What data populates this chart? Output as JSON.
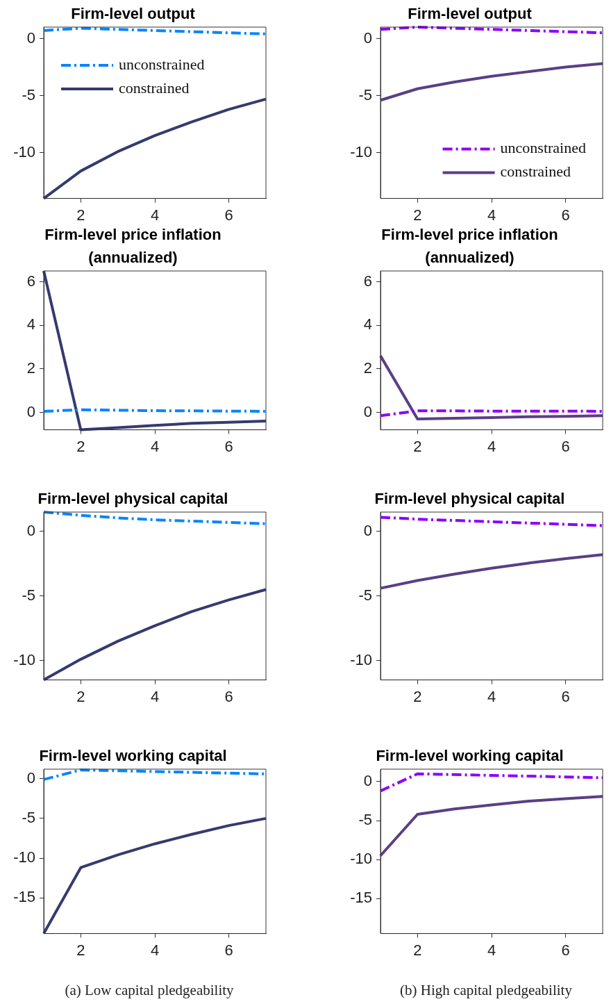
{
  "chart_data": [
    {
      "type": "line",
      "title": "Firm-level output",
      "x": [
        1,
        2,
        3,
        4,
        5,
        6,
        7
      ],
      "xlim": [
        1,
        7
      ],
      "xticks": [
        2,
        4,
        6
      ],
      "ylim": [
        -14,
        1
      ],
      "yticks": [
        -10,
        -5,
        0
      ],
      "legend": "top left",
      "series": [
        {
          "name": "unconstrained",
          "color": "#0a84ff",
          "line_style": "dashed",
          "values": [
            0.7,
            0.9,
            0.8,
            0.7,
            0.6,
            0.5,
            0.4
          ]
        },
        {
          "name": "constrained",
          "color": "#363a6e",
          "line_style": "solid",
          "values": [
            -14,
            -11.6,
            -9.9,
            -8.5,
            -7.3,
            -6.2,
            -5.3
          ]
        }
      ]
    },
    {
      "type": "line",
      "title": "Firm-level output",
      "x": [
        1,
        2,
        3,
        4,
        5,
        6,
        7
      ],
      "xlim": [
        1,
        7
      ],
      "xticks": [
        2,
        4,
        6
      ],
      "ylim": [
        -14,
        1
      ],
      "yticks": [
        -10,
        -5,
        0
      ],
      "legend": "bottom right",
      "series": [
        {
          "name": "unconstrained",
          "color": "#8b00ff",
          "line_style": "dashed",
          "values": [
            0.8,
            1,
            0.9,
            0.8,
            0.7,
            0.6,
            0.5
          ]
        },
        {
          "name": "constrained",
          "color": "#5a3f85",
          "line_style": "solid",
          "values": [
            -5.4,
            -4.4,
            -3.8,
            -3.3,
            -2.9,
            -2.5,
            -2.2
          ]
        }
      ]
    },
    {
      "type": "line",
      "title": "Firm-level price inflation (annualized)",
      "x": [
        1,
        2,
        3,
        4,
        5,
        6,
        7
      ],
      "xlim": [
        1,
        7
      ],
      "xticks": [
        2,
        4,
        6
      ],
      "ylim": [
        -0.8,
        6.5
      ],
      "yticks": [
        0,
        2,
        4,
        6
      ],
      "series": [
        {
          "color": "#0a84ff",
          "line_style": "dashed",
          "values": [
            0.05,
            0.12,
            0.1,
            0.08,
            0.07,
            0.06,
            0.05
          ]
        },
        {
          "color": "#363a6e",
          "line_style": "solid",
          "values": [
            6.5,
            -0.8,
            -0.7,
            -0.6,
            -0.5,
            -0.45,
            -0.4
          ]
        }
      ]
    },
    {
      "type": "line",
      "title": "Firm-level price inflation (annualized)",
      "x": [
        1,
        2,
        3,
        4,
        5,
        6,
        7
      ],
      "xlim": [
        1,
        7
      ],
      "xticks": [
        2,
        4,
        6
      ],
      "ylim": [
        -0.8,
        6.5
      ],
      "yticks": [
        0,
        2,
        4,
        6
      ],
      "series": [
        {
          "color": "#8b00ff",
          "line_style": "dashed",
          "values": [
            -0.15,
            0.07,
            0.07,
            0.06,
            0.06,
            0.06,
            0.05
          ]
        },
        {
          "color": "#5a3f85",
          "line_style": "solid",
          "values": [
            2.6,
            -0.3,
            -0.27,
            -0.24,
            -0.2,
            -0.18,
            -0.15
          ]
        }
      ]
    },
    {
      "type": "line",
      "title": "Firm-level physical capital",
      "x": [
        1,
        2,
        3,
        4,
        5,
        6,
        7
      ],
      "xlim": [
        1,
        7
      ],
      "xticks": [
        2,
        4,
        6
      ],
      "ylim": [
        -11.5,
        1.5
      ],
      "yticks": [
        -10,
        -5,
        0
      ],
      "series": [
        {
          "color": "#0a84ff",
          "line_style": "dashed",
          "values": [
            1.5,
            1.25,
            1.05,
            0.9,
            0.8,
            0.7,
            0.6
          ]
        },
        {
          "color": "#363a6e",
          "line_style": "solid",
          "values": [
            -11.5,
            -9.9,
            -8.5,
            -7.3,
            -6.2,
            -5.3,
            -4.5
          ]
        }
      ]
    },
    {
      "type": "line",
      "title": "Firm-level physical capital",
      "x": [
        1,
        2,
        3,
        4,
        5,
        6,
        7
      ],
      "xlim": [
        1,
        7
      ],
      "xticks": [
        2,
        4,
        6
      ],
      "ylim": [
        -11.5,
        1.5
      ],
      "yticks": [
        -10,
        -5,
        0
      ],
      "series": [
        {
          "color": "#8b00ff",
          "line_style": "dashed",
          "values": [
            1.1,
            0.95,
            0.85,
            0.75,
            0.65,
            0.55,
            0.45
          ]
        },
        {
          "color": "#5a3f85",
          "line_style": "solid",
          "values": [
            -4.4,
            -3.8,
            -3.3,
            -2.85,
            -2.45,
            -2.1,
            -1.8
          ]
        }
      ]
    },
    {
      "type": "line",
      "title": "Firm-level working capital",
      "x": [
        1,
        2,
        3,
        4,
        5,
        6,
        7
      ],
      "xlim": [
        1,
        7
      ],
      "xticks": [
        2,
        4,
        6
      ],
      "ylim": [
        -19.5,
        1.2
      ],
      "yticks": [
        -15,
        -10,
        -5,
        0
      ],
      "annotations": [
        "(a) Low capital pledgeability"
      ],
      "series": [
        {
          "color": "#0a84ff",
          "line_style": "dashed",
          "values": [
            -0.1,
            1.1,
            1,
            0.9,
            0.8,
            0.7,
            0.6
          ]
        },
        {
          "color": "#363a6e",
          "line_style": "solid",
          "values": [
            -19.5,
            -11.2,
            -9.6,
            -8.2,
            -7,
            -5.9,
            -5
          ]
        }
      ]
    },
    {
      "type": "line",
      "title": "Firm-level working capital",
      "x": [
        1,
        2,
        3,
        4,
        5,
        6,
        7
      ],
      "xlim": [
        1,
        7
      ],
      "xticks": [
        2,
        4,
        6
      ],
      "ylim": [
        -19.5,
        1.6
      ],
      "yticks": [
        -15,
        -10,
        -5,
        0
      ],
      "annotations": [
        "(b) High capital pledgeability"
      ],
      "series": [
        {
          "color": "#8b00ff",
          "line_style": "dashed",
          "values": [
            -1.2,
            1,
            0.9,
            0.8,
            0.7,
            0.6,
            0.5
          ]
        },
        {
          "color": "#5a3f85",
          "line_style": "solid",
          "values": [
            -9.5,
            -4.2,
            -3.5,
            -3,
            -2.5,
            -2.2,
            -1.9
          ]
        }
      ]
    }
  ]
}
